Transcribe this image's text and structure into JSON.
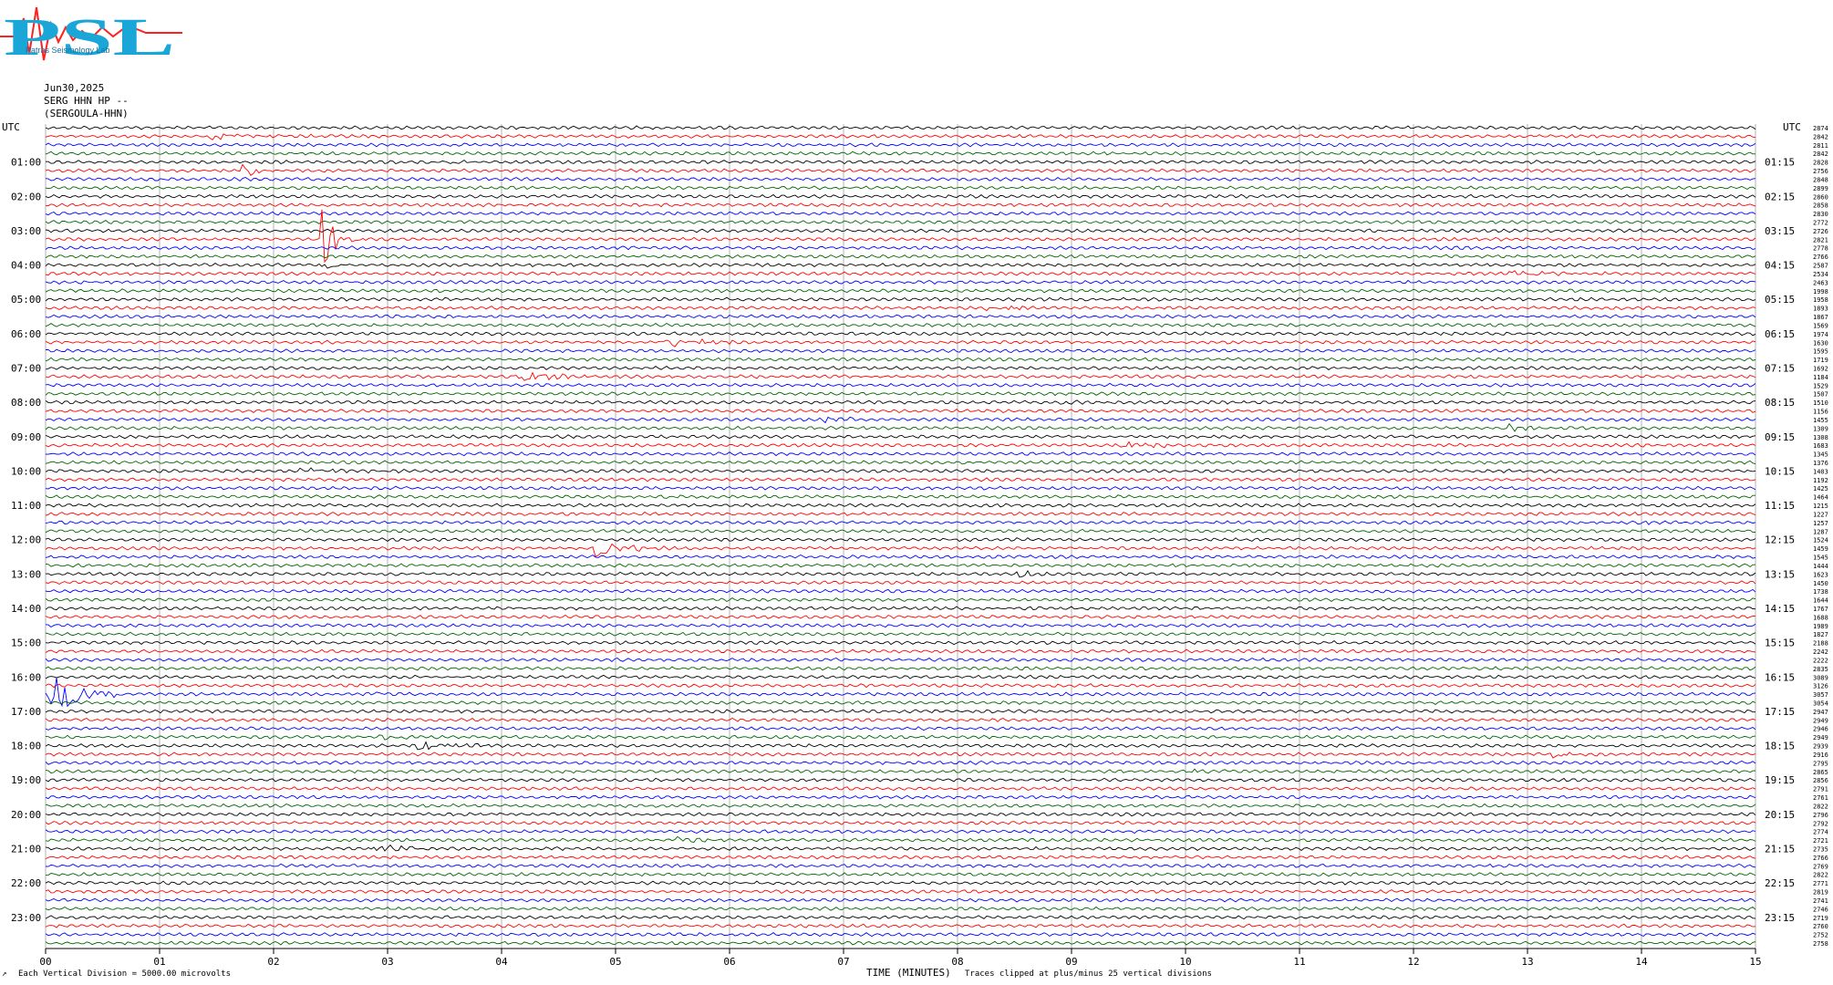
{
  "header": {
    "logo_text": "PSL",
    "logo_subtitle": "Patras Seismology Lab",
    "date": "Jun30,2025",
    "channel": "SERG HHN HP --",
    "station": "(SERGOULA-HHN)"
  },
  "colors": {
    "trace_cycle": [
      "#000000",
      "#ff0000",
      "#0000ff",
      "#006400"
    ],
    "grid": "#a0a0a0",
    "logo_primary": "#1aa7d8",
    "logo_accent": "#ff2020"
  },
  "footer": {
    "scale_note": "Each Vertical Division = 5000.00 microvolts",
    "xlabel": "TIME (MINUTES)",
    "clip_note": "Traces clipped at plus/minus 25 vertical divisions",
    "corner_mark": "↗"
  },
  "chart_data": {
    "type": "line",
    "title": "",
    "xlabel": "TIME (MINUTES)",
    "ylabel": "",
    "xlim": [
      0,
      15
    ],
    "x_ticks": [
      "00",
      "01",
      "02",
      "03",
      "04",
      "05",
      "06",
      "07",
      "08",
      "09",
      "10",
      "11",
      "12",
      "13",
      "14",
      "15"
    ],
    "grid": true,
    "traces_per_hour": 4,
    "trace_count": 96,
    "left_axis_label": "UTC",
    "right_axis_label": "UTC",
    "left_hour_labels": [
      "01:00",
      "02:00",
      "03:00",
      "04:00",
      "05:00",
      "06:00",
      "07:00",
      "08:00",
      "09:00",
      "10:00",
      "11:00",
      "12:00",
      "13:00",
      "14:00",
      "15:00",
      "16:00",
      "17:00",
      "18:00",
      "19:00",
      "20:00",
      "21:00",
      "22:00",
      "23:00"
    ],
    "right_hour_labels": [
      "01:15",
      "02:15",
      "03:15",
      "04:15",
      "05:15",
      "06:15",
      "07:15",
      "08:15",
      "09:15",
      "10:15",
      "11:15",
      "12:15",
      "13:15",
      "14:15",
      "15:15",
      "16:15",
      "17:15",
      "18:15",
      "19:15",
      "20:15",
      "21:15",
      "22:15",
      "23:15"
    ],
    "right_counts": [
      "2874",
      "2842",
      "2811",
      "2842",
      "2828",
      "2756",
      "2848",
      "2899",
      "2860",
      "2858",
      "2830",
      "2772",
      "2726",
      "2821",
      "2778",
      "2766",
      "2587",
      "2534",
      "2463",
      "1998",
      "1958",
      "1893",
      "1867",
      "1569",
      "1974",
      "1630",
      "1595",
      "1719",
      "1692",
      "1184",
      "1529",
      "1507",
      "1510",
      "1156",
      "1455",
      "1309",
      "1308",
      "1683",
      "1345",
      "1376",
      "1403",
      "1192",
      "1425",
      "1464",
      "1215",
      "1227",
      "1257",
      "1287",
      "1524",
      "1459",
      "1545",
      "1444",
      "1623",
      "1450",
      "1738",
      "1644",
      "1767",
      "1688",
      "1989",
      "1827",
      "2188",
      "2242",
      "2222",
      "2835",
      "3089",
      "3126",
      "3057",
      "3054",
      "2947",
      "2949",
      "2946",
      "2949",
      "2939",
      "2916",
      "2795",
      "2865",
      "2856",
      "2791",
      "2761",
      "2822",
      "2796",
      "2792",
      "2774",
      "2721",
      "2735",
      "2766",
      "2769",
      "2822",
      "2771",
      "2819",
      "2741",
      "2746",
      "2719",
      "2760",
      "2752",
      "2758"
    ],
    "events": [
      {
        "trace": 1,
        "start_min": 1.4,
        "end_min": 2.9,
        "amp": 4
      },
      {
        "trace": 5,
        "start_min": 1.7,
        "end_min": 2.1,
        "amp": 9
      },
      {
        "trace": 4,
        "start_min": 3.5,
        "end_min": 3.8,
        "amp": 3
      },
      {
        "trace": 13,
        "start_min": 2.4,
        "end_min": 2.8,
        "amp": 40
      },
      {
        "trace": 16,
        "start_min": 2.4,
        "end_min": 2.8,
        "amp": 8
      },
      {
        "trace": 17,
        "start_min": 12.8,
        "end_min": 14.0,
        "amp": 4
      },
      {
        "trace": 21,
        "start_min": 8.2,
        "end_min": 8.9,
        "amp": 4
      },
      {
        "trace": 25,
        "start_min": 5.4,
        "end_min": 6.4,
        "amp": 7
      },
      {
        "trace": 29,
        "start_min": 4.1,
        "end_min": 4.9,
        "amp": 9
      },
      {
        "trace": 32,
        "start_min": 8.9,
        "end_min": 9.4,
        "amp": 3
      },
      {
        "trace": 34,
        "start_min": 6.8,
        "end_min": 7.4,
        "amp": 4
      },
      {
        "trace": 35,
        "start_min": 12.8,
        "end_min": 13.6,
        "amp": 5
      },
      {
        "trace": 37,
        "start_min": 9.4,
        "end_min": 10.3,
        "amp": 6
      },
      {
        "trace": 40,
        "start_min": 2.2,
        "end_min": 3.2,
        "amp": 3
      },
      {
        "trace": 46,
        "start_min": 13.8,
        "end_min": 14.6,
        "amp": 4
      },
      {
        "trace": 49,
        "start_min": 4.8,
        "end_min": 5.5,
        "amp": 14
      },
      {
        "trace": 52,
        "start_min": 8.5,
        "end_min": 9.0,
        "amp": 5
      },
      {
        "trace": 66,
        "start_min": 0.0,
        "end_min": 0.7,
        "amp": 40
      },
      {
        "trace": 66,
        "start_min": 2.8,
        "end_min": 3.2,
        "amp": 4
      },
      {
        "trace": 71,
        "start_min": 2.9,
        "end_min": 3.6,
        "amp": 3
      },
      {
        "trace": 72,
        "start_min": 3.2,
        "end_min": 4.3,
        "amp": 6
      },
      {
        "trace": 73,
        "start_min": 13.2,
        "end_min": 13.8,
        "amp": 4
      },
      {
        "trace": 75,
        "start_min": 10.0,
        "end_min": 10.9,
        "amp": 3
      },
      {
        "trace": 83,
        "start_min": 5.5,
        "end_min": 6.3,
        "amp": 3
      },
      {
        "trace": 84,
        "start_min": 2.8,
        "end_min": 4.0,
        "amp": 4
      }
    ]
  }
}
